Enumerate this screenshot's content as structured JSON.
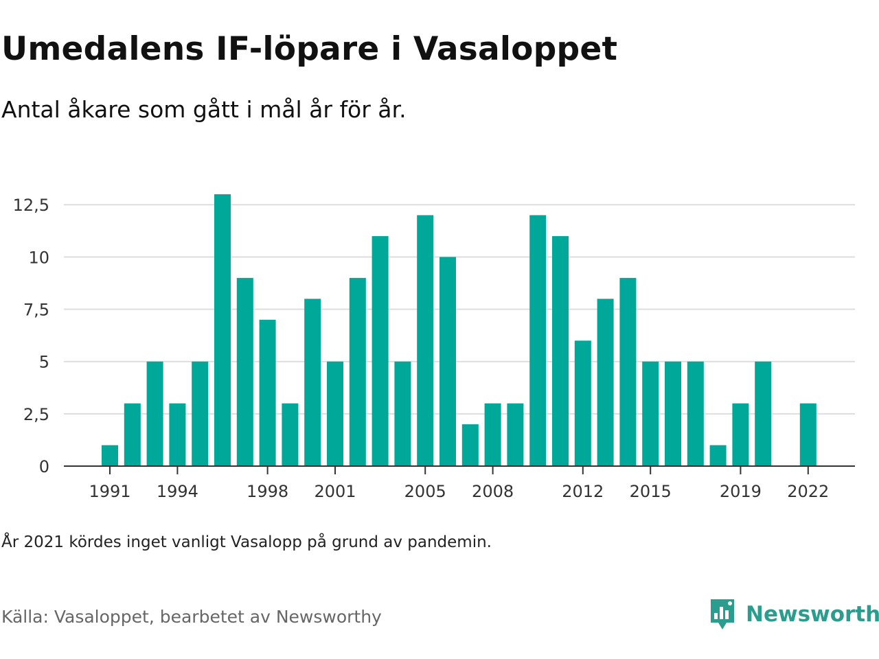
{
  "header": {
    "title": "Umedalens IF-löpare i Vasaloppet",
    "subtitle": "Antal åkare som gått i mål år för år."
  },
  "footer": {
    "note": "År 2021 kördes inget vanligt Vasalopp på grund av pandemin.",
    "source": "Källa: Vasaloppet, bearbetet av Newsworthy",
    "brand": "Newsworthy",
    "brand_icon": "newsworthy-logo-icon"
  },
  "colors": {
    "bar": "#00a89a",
    "brand": "#2a9d8f",
    "grid": "#dddddd",
    "axis": "#333333"
  },
  "chart_data": {
    "type": "bar",
    "categories": [
      1991,
      1992,
      1993,
      1994,
      1995,
      1996,
      1997,
      1998,
      1999,
      2000,
      2001,
      2002,
      2003,
      2004,
      2005,
      2006,
      2007,
      2008,
      2009,
      2010,
      2011,
      2012,
      2013,
      2014,
      2015,
      2016,
      2017,
      2018,
      2019,
      2020,
      2021,
      2022
    ],
    "values": [
      1,
      3,
      5,
      3,
      5,
      13,
      9,
      7,
      3,
      8,
      5,
      9,
      11,
      5,
      12,
      10,
      2,
      3,
      3,
      12,
      11,
      6,
      8,
      9,
      5,
      5,
      5,
      1,
      3,
      5,
      0,
      3
    ],
    "ylim": [
      0,
      13
    ],
    "yticks": [
      0,
      2.5,
      5,
      7.5,
      10,
      12.5
    ],
    "ytick_labels": [
      "0",
      "2,5",
      "5",
      "7,5",
      "10",
      "12,5"
    ],
    "xticks": [
      1991,
      1994,
      1998,
      2001,
      2005,
      2008,
      2012,
      2015,
      2019,
      2022
    ],
    "xtick_labels": [
      "1991",
      "1994",
      "1998",
      "2001",
      "2005",
      "2008",
      "2012",
      "2015",
      "2019",
      "2022"
    ],
    "grid": true,
    "legend": "none"
  }
}
